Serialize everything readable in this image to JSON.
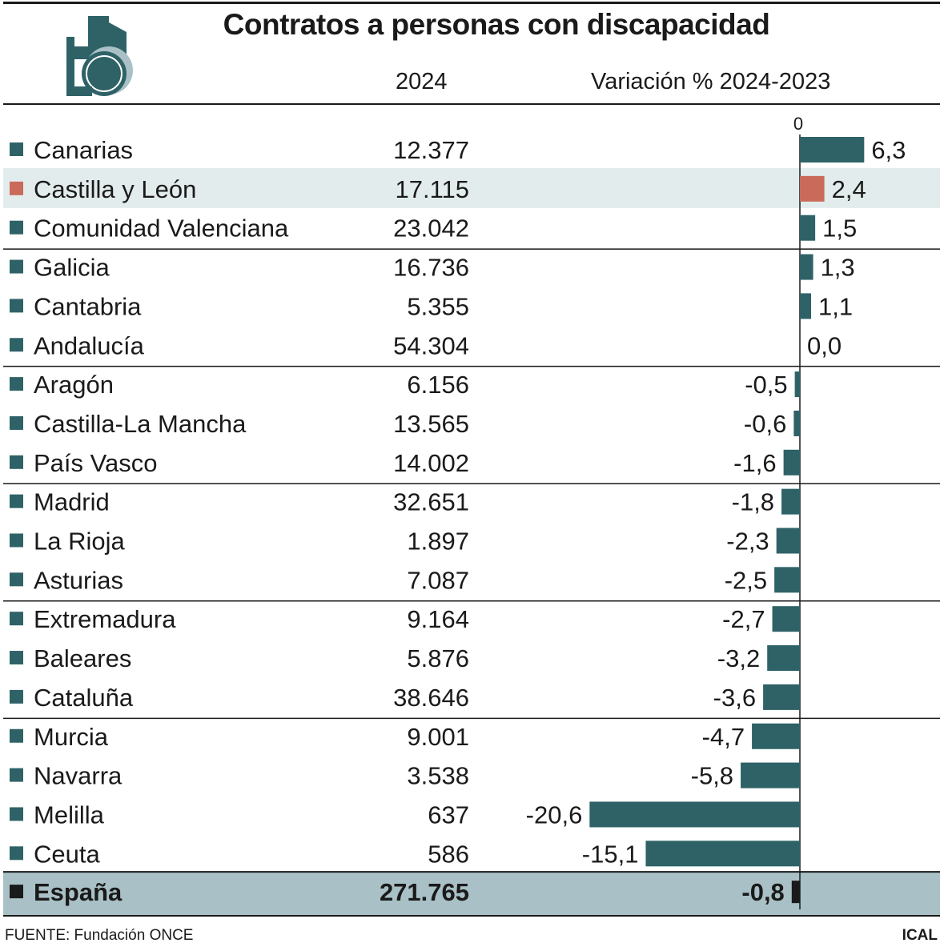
{
  "chart_data": {
    "type": "bar",
    "title": "Contratos a personas con discapacidad",
    "column_headers": {
      "value": "2024",
      "variation": "Variación % 2024-2023"
    },
    "zero_label": "0",
    "rows": [
      {
        "region": "Canarias",
        "value": "12.377",
        "variation": 6.3,
        "label": "6,3"
      },
      {
        "region": "Castilla y León",
        "value": "17.115",
        "variation": 2.4,
        "label": "2,4",
        "highlight": true
      },
      {
        "region": "Comunidad Valenciana",
        "value": "23.042",
        "variation": 1.5,
        "label": "1,5"
      },
      {
        "region": "Galicia",
        "value": "16.736",
        "variation": 1.3,
        "label": "1,3"
      },
      {
        "region": "Cantabria",
        "value": "5.355",
        "variation": 1.1,
        "label": "1,1"
      },
      {
        "region": "Andalucía",
        "value": "54.304",
        "variation": 0.0,
        "label": "0,0"
      },
      {
        "region": "Aragón",
        "value": "6.156",
        "variation": -0.5,
        "label": "-0,5"
      },
      {
        "region": "Castilla-La Mancha",
        "value": "13.565",
        "variation": -0.6,
        "label": "-0,6"
      },
      {
        "region": "País Vasco",
        "value": "14.002",
        "variation": -1.6,
        "label": "-1,6"
      },
      {
        "region": "Madrid",
        "value": "32.651",
        "variation": -1.8,
        "label": "-1,8"
      },
      {
        "region": "La Rioja",
        "value": "1.897",
        "variation": -2.3,
        "label": "-2,3"
      },
      {
        "region": "Asturias",
        "value": "7.087",
        "variation": -2.5,
        "label": "-2,5"
      },
      {
        "region": "Extremadura",
        "value": "9.164",
        "variation": -2.7,
        "label": "-2,7"
      },
      {
        "region": "Baleares",
        "value": "5.876",
        "variation": -3.2,
        "label": "-3,2"
      },
      {
        "region": "Cataluña",
        "value": "38.646",
        "variation": -3.6,
        "label": "-3,6"
      },
      {
        "region": "Murcia",
        "value": "9.001",
        "variation": -4.7,
        "label": "-4,7"
      },
      {
        "region": "Navarra",
        "value": "3.538",
        "variation": -5.8,
        "label": "-5,8"
      },
      {
        "region": "Melilla",
        "value": "637",
        "variation": -20.6,
        "label": "-20,6"
      },
      {
        "region": "Ceuta",
        "value": "586",
        "variation": -15.1,
        "label": "-15,1"
      }
    ],
    "total": {
      "region": "España",
      "value": "271.765",
      "variation": -0.8,
      "label": "-0,8"
    },
    "colors": {
      "bar": "#2e6266",
      "highlight_bar": "#c96a5a",
      "highlight_row": "#e3ecec",
      "total_row": "#a9c1c6",
      "total_marker": "#1a1a1a"
    }
  },
  "footer": {
    "source": "FUENTE: Fundación ONCE",
    "brand": "ICAL"
  }
}
